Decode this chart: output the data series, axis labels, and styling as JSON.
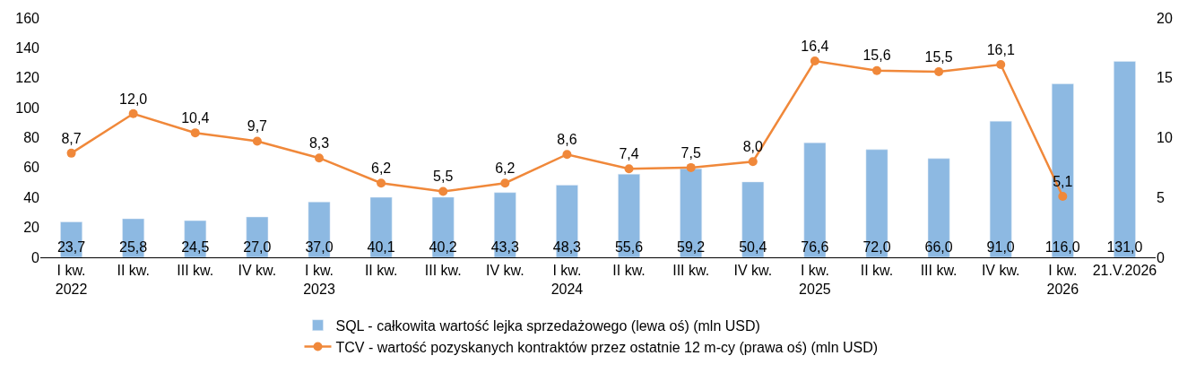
{
  "chart_data": {
    "type": "bar",
    "categories": [
      "I kw.\n2022",
      "II kw.",
      "III kw.",
      "IV kw.",
      "I kw.\n2023",
      "II kw.",
      "III kw.",
      "IV kw.",
      "I kw.\n2024",
      "II kw.",
      "III kw.",
      "IV kw.",
      "I kw.\n2025",
      "II kw.",
      "III kw.",
      "IV kw.",
      "I kw.\n2026",
      "21.V.2026"
    ],
    "series": [
      {
        "name": "SQL - całkowita wartość lejka sprzedażowego (lewa oś) (mln USD)",
        "color": "#8db9e2",
        "values": [
          23.7,
          25.8,
          24.5,
          27.0,
          37.0,
          40.1,
          40.2,
          43.3,
          48.3,
          55.6,
          59.2,
          50.4,
          76.6,
          72.0,
          66.0,
          91.0,
          116.0,
          131.0
        ],
        "value_labels": [
          "23,7",
          "25,8",
          "24,5",
          "27,0",
          "37,0",
          "40,1",
          "40,2",
          "43,3",
          "48,3",
          "55,6",
          "59,2",
          "50,4",
          "76,6",
          "72,0",
          "66,0",
          "91,0",
          "116,0",
          "131,0"
        ]
      },
      {
        "name": "TCV - wartość pozyskanych kontraktów przez ostatnie 12 m-cy (prawa oś) (mln USD)",
        "color": "#f0883a",
        "type": "line",
        "axis": "y2",
        "values": [
          8.7,
          12.0,
          10.4,
          9.7,
          8.3,
          6.2,
          5.5,
          6.2,
          8.6,
          7.4,
          7.5,
          8.0,
          16.4,
          15.6,
          15.5,
          16.1,
          5.1,
          null
        ],
        "value_labels": [
          "8,7",
          "12,0",
          "10,4",
          "9,7",
          "8,3",
          "6,2",
          "5,5",
          "6,2",
          "8,6",
          "7,4",
          "7,5",
          "8,0",
          "16,4",
          "15,6",
          "15,5",
          "16,1",
          "5,1",
          null
        ]
      }
    ],
    "ylim": [
      0,
      160
    ],
    "yticks": [
      0,
      20,
      40,
      60,
      80,
      100,
      120,
      140,
      160
    ],
    "y2lim": [
      0,
      20
    ],
    "y2ticks": [
      0,
      5,
      10,
      15,
      20
    ],
    "marker": "circle",
    "legend": "bottom"
  }
}
